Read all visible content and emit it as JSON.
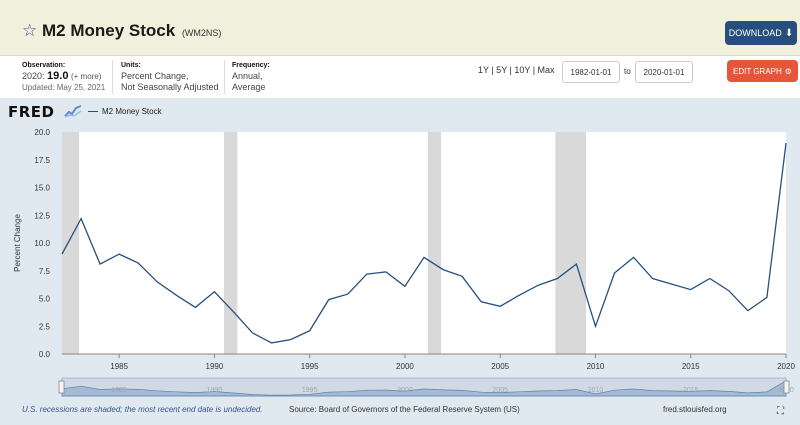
{
  "header": {
    "title": "M2 Money Stock",
    "series_id": "(WM2NS)",
    "download_label": "DOWNLOAD",
    "download_icon": "download-arrow-icon"
  },
  "meta": {
    "observation_label": "Observation:",
    "observation_period": "2020:",
    "observation_value": "19.0",
    "observation_more": "(+ more)",
    "updated": "Updated: May 25, 2021",
    "units_label": "Units:",
    "units_line1": "Percent Change,",
    "units_line2": "Not Seasonally Adjusted",
    "frequency_label": "Frequency:",
    "frequency_line1": "Annual,",
    "frequency_line2": "Average"
  },
  "controls": {
    "range_links": "1Y | 5Y | 10Y | Max",
    "start_date": "1982-01-01",
    "to_label": "to",
    "end_date": "2020-01-01",
    "edit_label": "EDIT GRAPH",
    "edit_icon": "gear-icon"
  },
  "logo": "FRED",
  "legend_label": "M2 Money Stock",
  "footer": {
    "note": "U.S. recessions are shaded; the most recent end date is undecided.",
    "source": "Source: Board of Governors of the Federal Reserve System (US)",
    "url": "fred.stlouisfed.org"
  },
  "colors": {
    "line": "#264f7e",
    "recession": "#d9d9d9",
    "download_button": "#264f7e",
    "edit_button": "#e8553b"
  },
  "chart_data": {
    "type": "line",
    "ylabel": "Percent Change",
    "ylim": [
      0,
      20
    ],
    "xlim": [
      1982,
      2020
    ],
    "yticks": [
      "0.0",
      "2.5",
      "5.0",
      "7.5",
      "10.0",
      "12.5",
      "15.0",
      "17.5",
      "20.0"
    ],
    "xticks": [
      "1985",
      "1990",
      "1995",
      "2000",
      "2005",
      "2010",
      "2015",
      "2020"
    ],
    "grid": false,
    "legend": "top-left",
    "recessions": [
      [
        1982.0,
        1982.9
      ],
      [
        1990.5,
        1991.2
      ],
      [
        2001.2,
        2001.9
      ],
      [
        2007.9,
        2009.5
      ]
    ],
    "series": [
      {
        "name": "M2 Money Stock",
        "x": [
          1982,
          1983,
          1984,
          1985,
          1986,
          1987,
          1988,
          1989,
          1990,
          1991,
          1992,
          1993,
          1994,
          1995,
          1996,
          1997,
          1998,
          1999,
          2000,
          2001,
          2002,
          2003,
          2004,
          2005,
          2006,
          2007,
          2008,
          2009,
          2010,
          2011,
          2012,
          2013,
          2014,
          2015,
          2016,
          2017,
          2018,
          2019,
          2020
        ],
        "y": [
          9.0,
          12.2,
          8.1,
          9.0,
          8.2,
          6.5,
          5.3,
          4.2,
          5.6,
          3.8,
          1.9,
          1.0,
          1.3,
          2.1,
          4.9,
          5.4,
          7.2,
          7.4,
          6.1,
          8.7,
          7.6,
          7.0,
          4.7,
          4.3,
          5.3,
          6.2,
          6.8,
          8.1,
          2.5,
          7.3,
          8.7,
          6.8,
          6.3,
          5.8,
          6.8,
          5.7,
          3.9,
          5.1,
          19.0
        ]
      }
    ],
    "navigator_labels": [
      "1985",
      "1990",
      "1995",
      "2000",
      "2005",
      "2010",
      "2015",
      "2020"
    ]
  }
}
